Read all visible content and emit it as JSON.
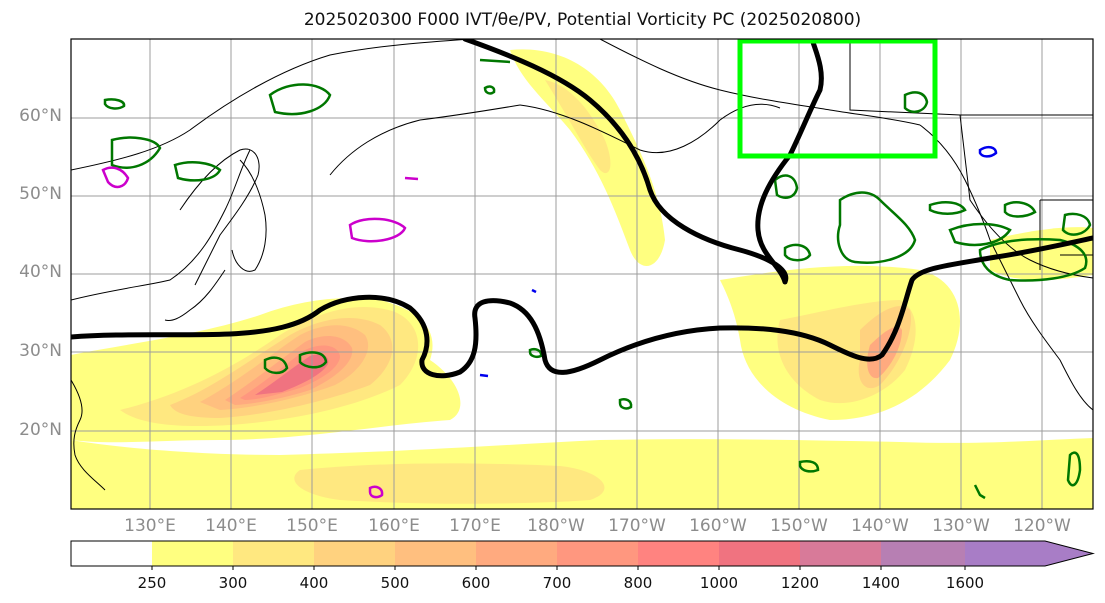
{
  "title": "2025020300 F000 IVT/θe/PV, Potential Vorticity PC (2025020800)",
  "lat_labels": [
    "60°N",
    "50°N",
    "40°N",
    "30°N",
    "20°N"
  ],
  "lon_labels": [
    "130°E",
    "140°E",
    "150°E",
    "160°E",
    "170°E",
    "180°W",
    "170°W",
    "160°W",
    "150°W",
    "140°W",
    "130°W",
    "120°W"
  ],
  "colorbar": {
    "ticks": [
      "250",
      "300",
      "400",
      "500",
      "600",
      "700",
      "800",
      "1000",
      "1200",
      "1400",
      "1600"
    ],
    "colors": [
      "#ffffff",
      "#ffff80",
      "#ffe880",
      "#ffd27f",
      "#ffbf7f",
      "#ffaa7f",
      "#ff977f",
      "#ff8380",
      "#f07380",
      "#d87a99",
      "#b77fb3",
      "#a87dc6"
    ]
  },
  "highlight_box_color": "#00ff00",
  "pv_contour_colors": {
    "positive": "#007700",
    "negative": "#cc00cc",
    "low": "#0000ee"
  }
}
